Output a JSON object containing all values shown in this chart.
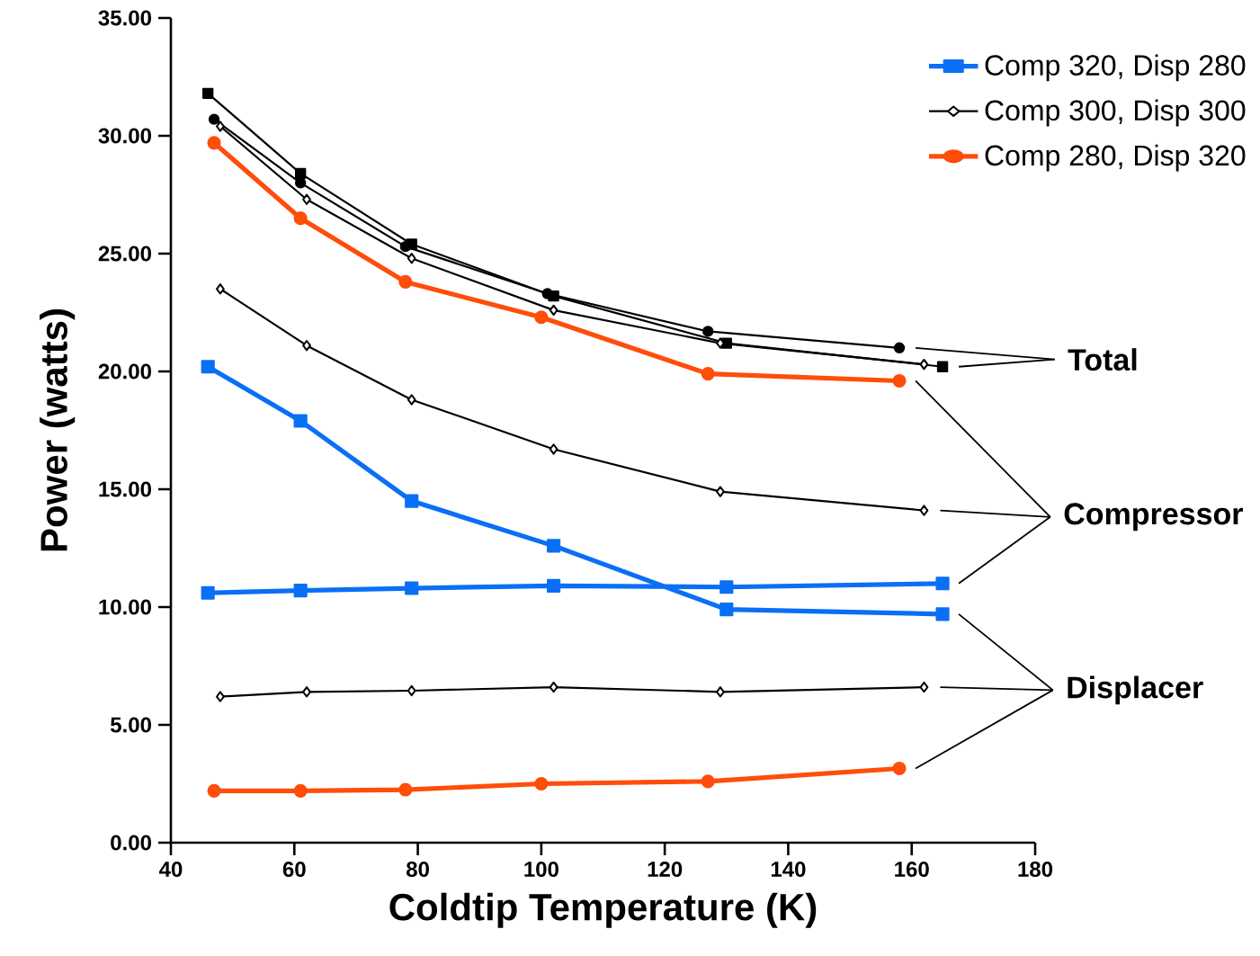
{
  "chart_data": {
    "type": "line",
    "xlabel": "Coldtip Temperature  (K)",
    "ylabel": "Power  (watts)",
    "xlim": [
      40,
      180
    ],
    "xticks": [
      40,
      60,
      80,
      100,
      120,
      140,
      160,
      180
    ],
    "ylim": [
      0,
      35
    ],
    "yticks": [
      {
        "value": 0,
        "label": "0.00"
      },
      {
        "value": 5,
        "label": "5.00"
      },
      {
        "value": 10,
        "label": "10.00"
      },
      {
        "value": 15,
        "label": "15.00"
      },
      {
        "value": 20,
        "label": "20.00"
      },
      {
        "value": 25,
        "label": "25.00"
      },
      {
        "value": 30,
        "label": "30.00"
      },
      {
        "value": 35,
        "label": "35.00"
      }
    ],
    "grid": false,
    "legend": "top right",
    "annotations": [
      "Total",
      "Compressor",
      "Displacer"
    ],
    "series": [
      {
        "name": "Comp 320,  Disp 280",
        "color": "#0a6ff5",
        "marker": "square",
        "x": [
          46,
          61,
          79,
          102,
          130,
          165
        ],
        "values": [
          20.2,
          17.9,
          14.5,
          12.6,
          9.9,
          9.7
        ]
      },
      {
        "name": "Comp 300,  Disp 300",
        "color": "#000000",
        "marker": "diamond",
        "x": [
          48,
          62,
          79,
          102,
          129,
          162
        ],
        "values": [
          23.5,
          21.1,
          18.8,
          16.7,
          14.9,
          14.1
        ]
      },
      {
        "name": "Comp 280,  Disp 320",
        "color": "#ff4d0a",
        "marker": "circle",
        "x": [
          47,
          61,
          78,
          100,
          127,
          158
        ],
        "values": [
          29.7,
          26.5,
          23.8,
          22.3,
          19.9,
          19.6
        ]
      },
      {
        "color": "#000000",
        "marker": "square",
        "x": [
          46,
          61,
          79,
          102,
          130,
          165
        ],
        "values": [
          31.8,
          28.4,
          25.4,
          23.2,
          21.2,
          20.2
        ]
      },
      {
        "color": "#000000",
        "marker": "diamond",
        "x": [
          48,
          62,
          79,
          102,
          129,
          162
        ],
        "values": [
          30.4,
          27.3,
          24.8,
          22.6,
          21.2,
          20.3
        ]
      },
      {
        "color": "#000000",
        "marker": "circle",
        "x": [
          47,
          61,
          78,
          101,
          127,
          158
        ],
        "values": [
          30.7,
          28.0,
          25.3,
          23.3,
          21.7,
          21.0
        ]
      },
      {
        "color": "#0a6ff5",
        "marker": "square",
        "x": [
          46,
          61,
          79,
          102,
          130,
          165
        ],
        "values": [
          10.6,
          10.7,
          10.8,
          10.9,
          10.85,
          11.0
        ]
      },
      {
        "color": "#000000",
        "marker": "diamond",
        "x": [
          48,
          62,
          79,
          102,
          129,
          162
        ],
        "values": [
          6.2,
          6.4,
          6.45,
          6.6,
          6.4,
          6.6
        ]
      },
      {
        "color": "#ff4d0a",
        "marker": "circle",
        "x": [
          47,
          61,
          78,
          100,
          127,
          158
        ],
        "values": [
          2.2,
          2.2,
          2.25,
          2.5,
          2.6,
          3.15
        ]
      }
    ]
  }
}
